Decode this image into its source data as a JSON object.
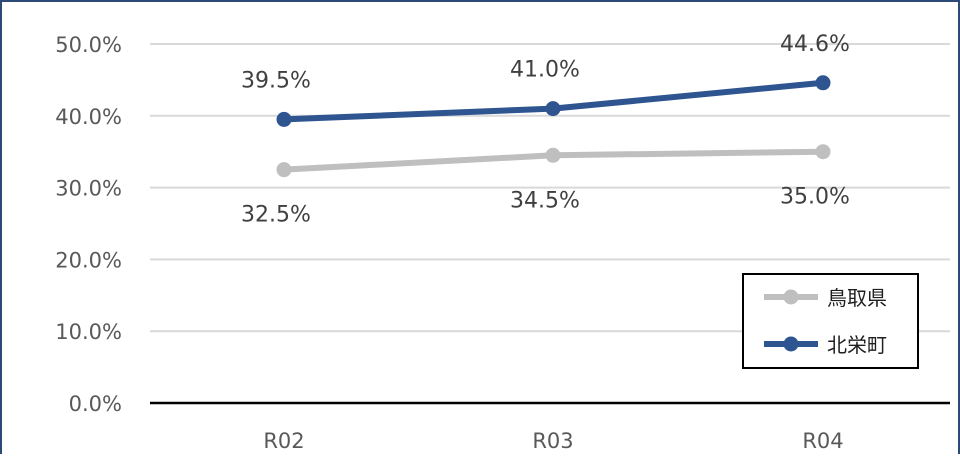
{
  "chart_data": {
    "type": "line",
    "categories": [
      "R02",
      "R03",
      "R04"
    ],
    "series": [
      {
        "name": "鳥取県",
        "values": [
          32.5,
          34.5,
          35.0
        ],
        "labels": [
          "32.5%",
          "34.5%",
          "35.0%"
        ],
        "color": "#bfbfbf",
        "label_position": "below"
      },
      {
        "name": "北栄町",
        "values": [
          39.5,
          41.0,
          44.6
        ],
        "labels": [
          "39.5%",
          "41.0%",
          "44.6%"
        ],
        "color": "#2e5590",
        "label_position": "above"
      }
    ],
    "y_ticks": [
      {
        "value": 0,
        "label": "0.0%"
      },
      {
        "value": 10,
        "label": "10.0%"
      },
      {
        "value": 20,
        "label": "20.0%"
      },
      {
        "value": 30,
        "label": "30.0%"
      },
      {
        "value": 40,
        "label": "40.0%"
      },
      {
        "value": 50,
        "label": "50.0%"
      }
    ],
    "ylim": [
      0,
      50
    ],
    "grid": true,
    "legend_position": "bottom-right",
    "gridline_color": "#d9d9d9",
    "axis_color": "#000000"
  }
}
